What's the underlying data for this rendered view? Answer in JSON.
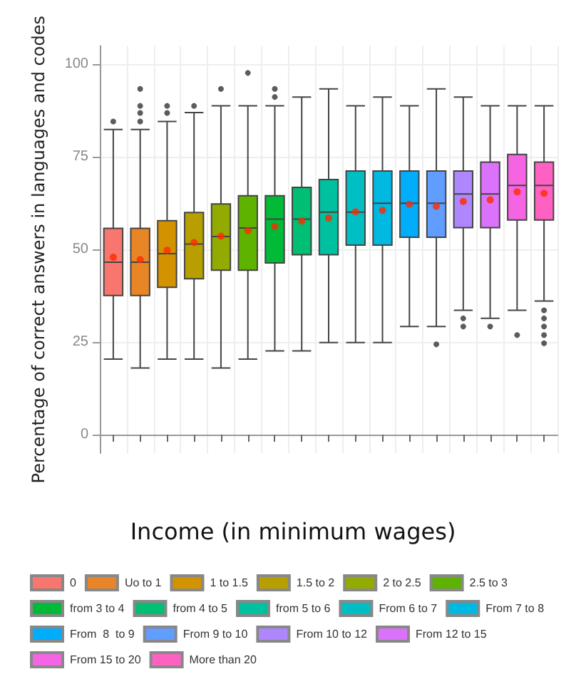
{
  "chart_data": {
    "type": "box",
    "ylabel": "Percentage of correct answers in languages and codes",
    "legend_title": "Income (in minimum wages)",
    "categories": [
      null,
      null,
      null,
      null,
      null,
      null,
      null,
      null,
      null,
      null,
      null,
      null,
      null,
      null,
      null,
      null,
      null
    ],
    "series": [
      {
        "name": "0",
        "color": "#f8766d",
        "boxes": [
          {
            "low": 20.4,
            "q1": 37.6,
            "median": 46.6,
            "q3": 55.7,
            "high": 82.4,
            "mean": 47.9,
            "outliers": [
              84.6
            ]
          },
          null,
          null,
          null,
          null,
          null,
          null,
          null,
          null,
          null,
          null,
          null,
          null,
          null,
          null,
          null,
          null
        ]
      },
      {
        "name": "Uo to 1",
        "color": "#e88526",
        "boxes": [
          null,
          {
            "low": 18.0,
            "q1": 37.6,
            "median": 46.6,
            "q3": 55.7,
            "high": 82.4,
            "mean": 47.3,
            "outliers": [
              93.4,
              88.8,
              86.9,
              84.6
            ]
          },
          null,
          null,
          null,
          null,
          null,
          null,
          null,
          null,
          null,
          null,
          null,
          null,
          null,
          null,
          null
        ]
      },
      {
        "name": "1 to 1.5",
        "color": "#d39200",
        "boxes": [
          null,
          null,
          {
            "low": 20.4,
            "q1": 39.8,
            "median": 48.9,
            "q3": 57.8,
            "high": 84.6,
            "mean": 49.8,
            "outliers": [
              88.8,
              86.9
            ]
          },
          null,
          null,
          null,
          null,
          null,
          null,
          null,
          null,
          null,
          null,
          null,
          null,
          null,
          null
        ]
      },
      {
        "name": "1.5 to 2",
        "color": "#b79f00",
        "boxes": [
          null,
          null,
          null,
          {
            "low": 20.4,
            "q1": 42.1,
            "median": 51.5,
            "q3": 60.0,
            "high": 87.0,
            "mean": 51.9,
            "outliers": [
              88.8
            ]
          },
          null,
          null,
          null,
          null,
          null,
          null,
          null,
          null,
          null,
          null,
          null,
          null,
          null
        ]
      },
      {
        "name": "2 to 2.5",
        "color": "#93aa00",
        "boxes": [
          null,
          null,
          null,
          null,
          {
            "low": 18.0,
            "q1": 44.4,
            "median": 53.5,
            "q3": 62.3,
            "high": 88.8,
            "mean": 53.6,
            "outliers": [
              93.4
            ]
          },
          null,
          null,
          null,
          null,
          null,
          null,
          null,
          null,
          null,
          null,
          null,
          null
        ]
      },
      {
        "name": "2.5 to 3",
        "color": "#5eb300",
        "boxes": [
          null,
          null,
          null,
          null,
          null,
          {
            "low": 20.4,
            "q1": 44.4,
            "median": 55.8,
            "q3": 64.5,
            "high": 88.8,
            "mean": 55.1,
            "outliers": [
              97.7
            ]
          },
          null,
          null,
          null,
          null,
          null,
          null,
          null,
          null,
          null,
          null,
          null
        ]
      },
      {
        "name": "from 3 to 4",
        "color": "#00ba38",
        "boxes": [
          null,
          null,
          null,
          null,
          null,
          null,
          {
            "low": 22.6,
            "q1": 46.4,
            "median": 58.2,
            "q3": 64.5,
            "high": 88.8,
            "mean": 56.2,
            "outliers": [
              93.4,
              91.2
            ]
          },
          null,
          null,
          null,
          null,
          null,
          null,
          null,
          null,
          null,
          null
        ]
      },
      {
        "name": "from 4 to 5",
        "color": "#00bf74",
        "boxes": [
          null,
          null,
          null,
          null,
          null,
          null,
          null,
          {
            "low": 22.6,
            "q1": 48.6,
            "median": 58.2,
            "q3": 66.8,
            "high": 91.2,
            "mean": 57.7
          },
          null,
          null,
          null,
          null,
          null,
          null,
          null,
          null,
          null
        ]
      },
      {
        "name": "from 5 to 6",
        "color": "#00c19f",
        "boxes": [
          null,
          null,
          null,
          null,
          null,
          null,
          null,
          null,
          {
            "low": 24.9,
            "q1": 48.6,
            "median": 60.1,
            "q3": 68.9,
            "high": 93.4,
            "mean": 58.5
          },
          null,
          null,
          null,
          null,
          null,
          null,
          null,
          null
        ]
      },
      {
        "name": "From 6 to 7",
        "color": "#00bfc4",
        "boxes": [
          null,
          null,
          null,
          null,
          null,
          null,
          null,
          null,
          null,
          {
            "low": 24.9,
            "q1": 51.2,
            "median": 60.1,
            "q3": 71.2,
            "high": 88.8,
            "mean": 60.2
          },
          null,
          null,
          null,
          null,
          null,
          null,
          null
        ]
      },
      {
        "name": "From 7 to 8",
        "color": "#00b9e3",
        "boxes": [
          null,
          null,
          null,
          null,
          null,
          null,
          null,
          null,
          null,
          null,
          {
            "low": 24.9,
            "q1": 51.2,
            "median": 62.5,
            "q3": 71.2,
            "high": 91.2,
            "mean": 60.6
          },
          null,
          null,
          null,
          null,
          null,
          null
        ]
      },
      {
        "name": "From  8  to 9",
        "color": "#00adfa",
        "boxes": [
          null,
          null,
          null,
          null,
          null,
          null,
          null,
          null,
          null,
          null,
          null,
          {
            "low": 29.2,
            "q1": 53.3,
            "median": 62.5,
            "q3": 71.2,
            "high": 88.8,
            "mean": 62.2
          },
          null,
          null,
          null,
          null,
          null
        ]
      },
      {
        "name": "From 9 to 10",
        "color": "#619cff",
        "boxes": [
          null,
          null,
          null,
          null,
          null,
          null,
          null,
          null,
          null,
          null,
          null,
          null,
          {
            "low": 29.2,
            "q1": 53.3,
            "median": 62.5,
            "q3": 71.2,
            "high": 93.4,
            "mean": 61.7,
            "outliers": [
              24.4
            ]
          },
          null,
          null,
          null,
          null
        ]
      },
      {
        "name": "From 10 to 12",
        "color": "#ae87ff",
        "boxes": [
          null,
          null,
          null,
          null,
          null,
          null,
          null,
          null,
          null,
          null,
          null,
          null,
          null,
          {
            "low": 33.6,
            "q1": 55.9,
            "median": 65.0,
            "q3": 71.2,
            "high": 91.2,
            "mean": 63.0,
            "outliers": [
              31.4,
              29.2
            ]
          },
          null,
          null,
          null
        ]
      },
      {
        "name": "From 12 to 15",
        "color": "#db72fb",
        "boxes": [
          null,
          null,
          null,
          null,
          null,
          null,
          null,
          null,
          null,
          null,
          null,
          null,
          null,
          null,
          {
            "low": 31.4,
            "q1": 55.9,
            "median": 65.0,
            "q3": 73.6,
            "high": 88.8,
            "mean": 63.4,
            "outliers": [
              29.2
            ]
          },
          null,
          null
        ]
      },
      {
        "name": "From 15 to 20",
        "color": "#f564e3",
        "boxes": [
          null,
          null,
          null,
          null,
          null,
          null,
          null,
          null,
          null,
          null,
          null,
          null,
          null,
          null,
          null,
          {
            "low": 33.6,
            "q1": 58.0,
            "median": 67.3,
            "q3": 75.7,
            "high": 88.8,
            "mean": 65.6,
            "outliers": [
              26.9
            ]
          },
          null
        ]
      },
      {
        "name": "More than 20",
        "color": "#ff61c3",
        "boxes": [
          null,
          null,
          null,
          null,
          null,
          null,
          null,
          null,
          null,
          null,
          null,
          null,
          null,
          null,
          null,
          null,
          {
            "low": 36.1,
            "q1": 58.0,
            "median": 67.3,
            "q3": 73.6,
            "high": 88.8,
            "mean": 65.2,
            "outliers": [
              33.6,
              31.4,
              29.2,
              26.9,
              24.7
            ]
          }
        ]
      }
    ],
    "ylim": [
      -5,
      105
    ],
    "yticks": [
      0,
      25,
      50,
      75,
      100
    ],
    "grid": true,
    "legend": "bottom",
    "tick_labels": "y"
  }
}
